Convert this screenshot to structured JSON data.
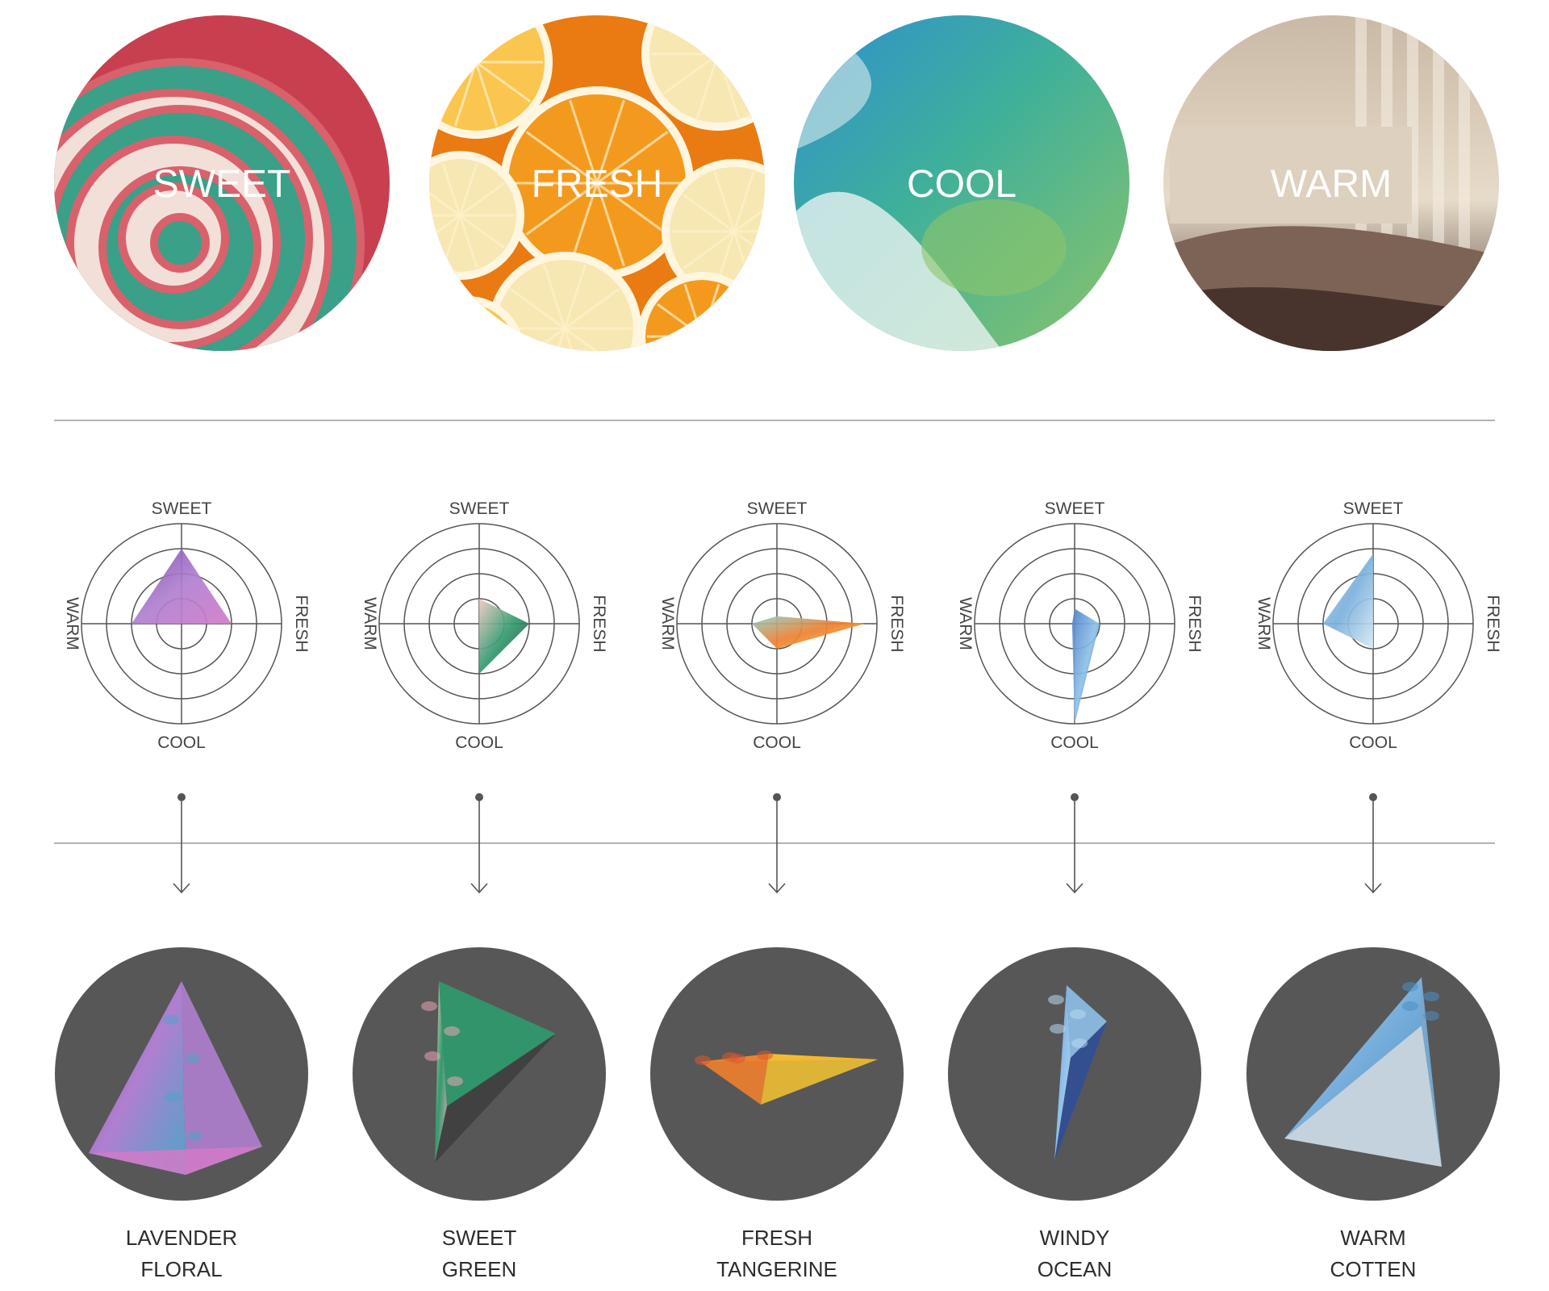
{
  "moods": [
    {
      "label": "SWEET",
      "theme": "candy-swirl",
      "colors": [
        "#c8404f",
        "#d9616c",
        "#3aa087",
        "#f2e0d8"
      ]
    },
    {
      "label": "FRESH",
      "theme": "citrus-slices",
      "colors": [
        "#f39a1e",
        "#fbc64f",
        "#f7e7b2",
        "#e97b12"
      ]
    },
    {
      "label": "COOL",
      "theme": "ocean-wave",
      "colors": [
        "#2f8fd0",
        "#3fb09a",
        "#8cc46a",
        "#e9f3f1"
      ]
    },
    {
      "label": "WARM",
      "theme": "sunlit-bedroom",
      "colors": [
        "#3e2c27",
        "#7d6355",
        "#c9b9a5",
        "#e7dbc9"
      ]
    }
  ],
  "axes": {
    "top": "SWEET",
    "right": "FRESH",
    "bottom": "COOL",
    "left": "WARM"
  },
  "scents": [
    {
      "name_line1": "LAVENDER",
      "name_line2": "FLORAL",
      "profile": {
        "sweet": 3,
        "fresh": 2,
        "cool": 0,
        "warm": 2
      },
      "colors": [
        "#7b4bb0",
        "#b07fd0",
        "#d27ac8",
        "#4ea4c8"
      ]
    },
    {
      "name_line1": "SWEET",
      "name_line2": "GREEN",
      "profile": {
        "sweet": 1,
        "fresh": 2,
        "cool": 2,
        "warm": 0
      },
      "colors": [
        "#f0c8c4",
        "#2f9b6e",
        "#3d3d3d",
        "#e8a6b0"
      ]
    },
    {
      "name_line1": "FRESH",
      "name_line2": "TANGERINE",
      "profile": {
        "sweet": 0.3,
        "fresh": 3.5,
        "cool": 1,
        "warm": 1
      },
      "colors": [
        "#8fcfc4",
        "#ef7f2f",
        "#f4c430",
        "#d95a2b"
      ]
    },
    {
      "name_line1": "WINDY",
      "name_line2": "OCEAN",
      "profile": {
        "sweet": 0.6,
        "fresh": 1,
        "cool": 4,
        "warm": 0.1
      },
      "colors": [
        "#4f7fc8",
        "#8ec0e8",
        "#2e4e9a",
        "#b9d8f0"
      ]
    },
    {
      "name_line1": "WARM",
      "name_line2": "COTTEN",
      "profile": {
        "sweet": 2.8,
        "fresh": 0,
        "cool": 1,
        "warm": 2
      },
      "colors": [
        "#a9cce8",
        "#7ab0dc",
        "#d6e8f4",
        "#4d8fc4"
      ]
    }
  ]
}
